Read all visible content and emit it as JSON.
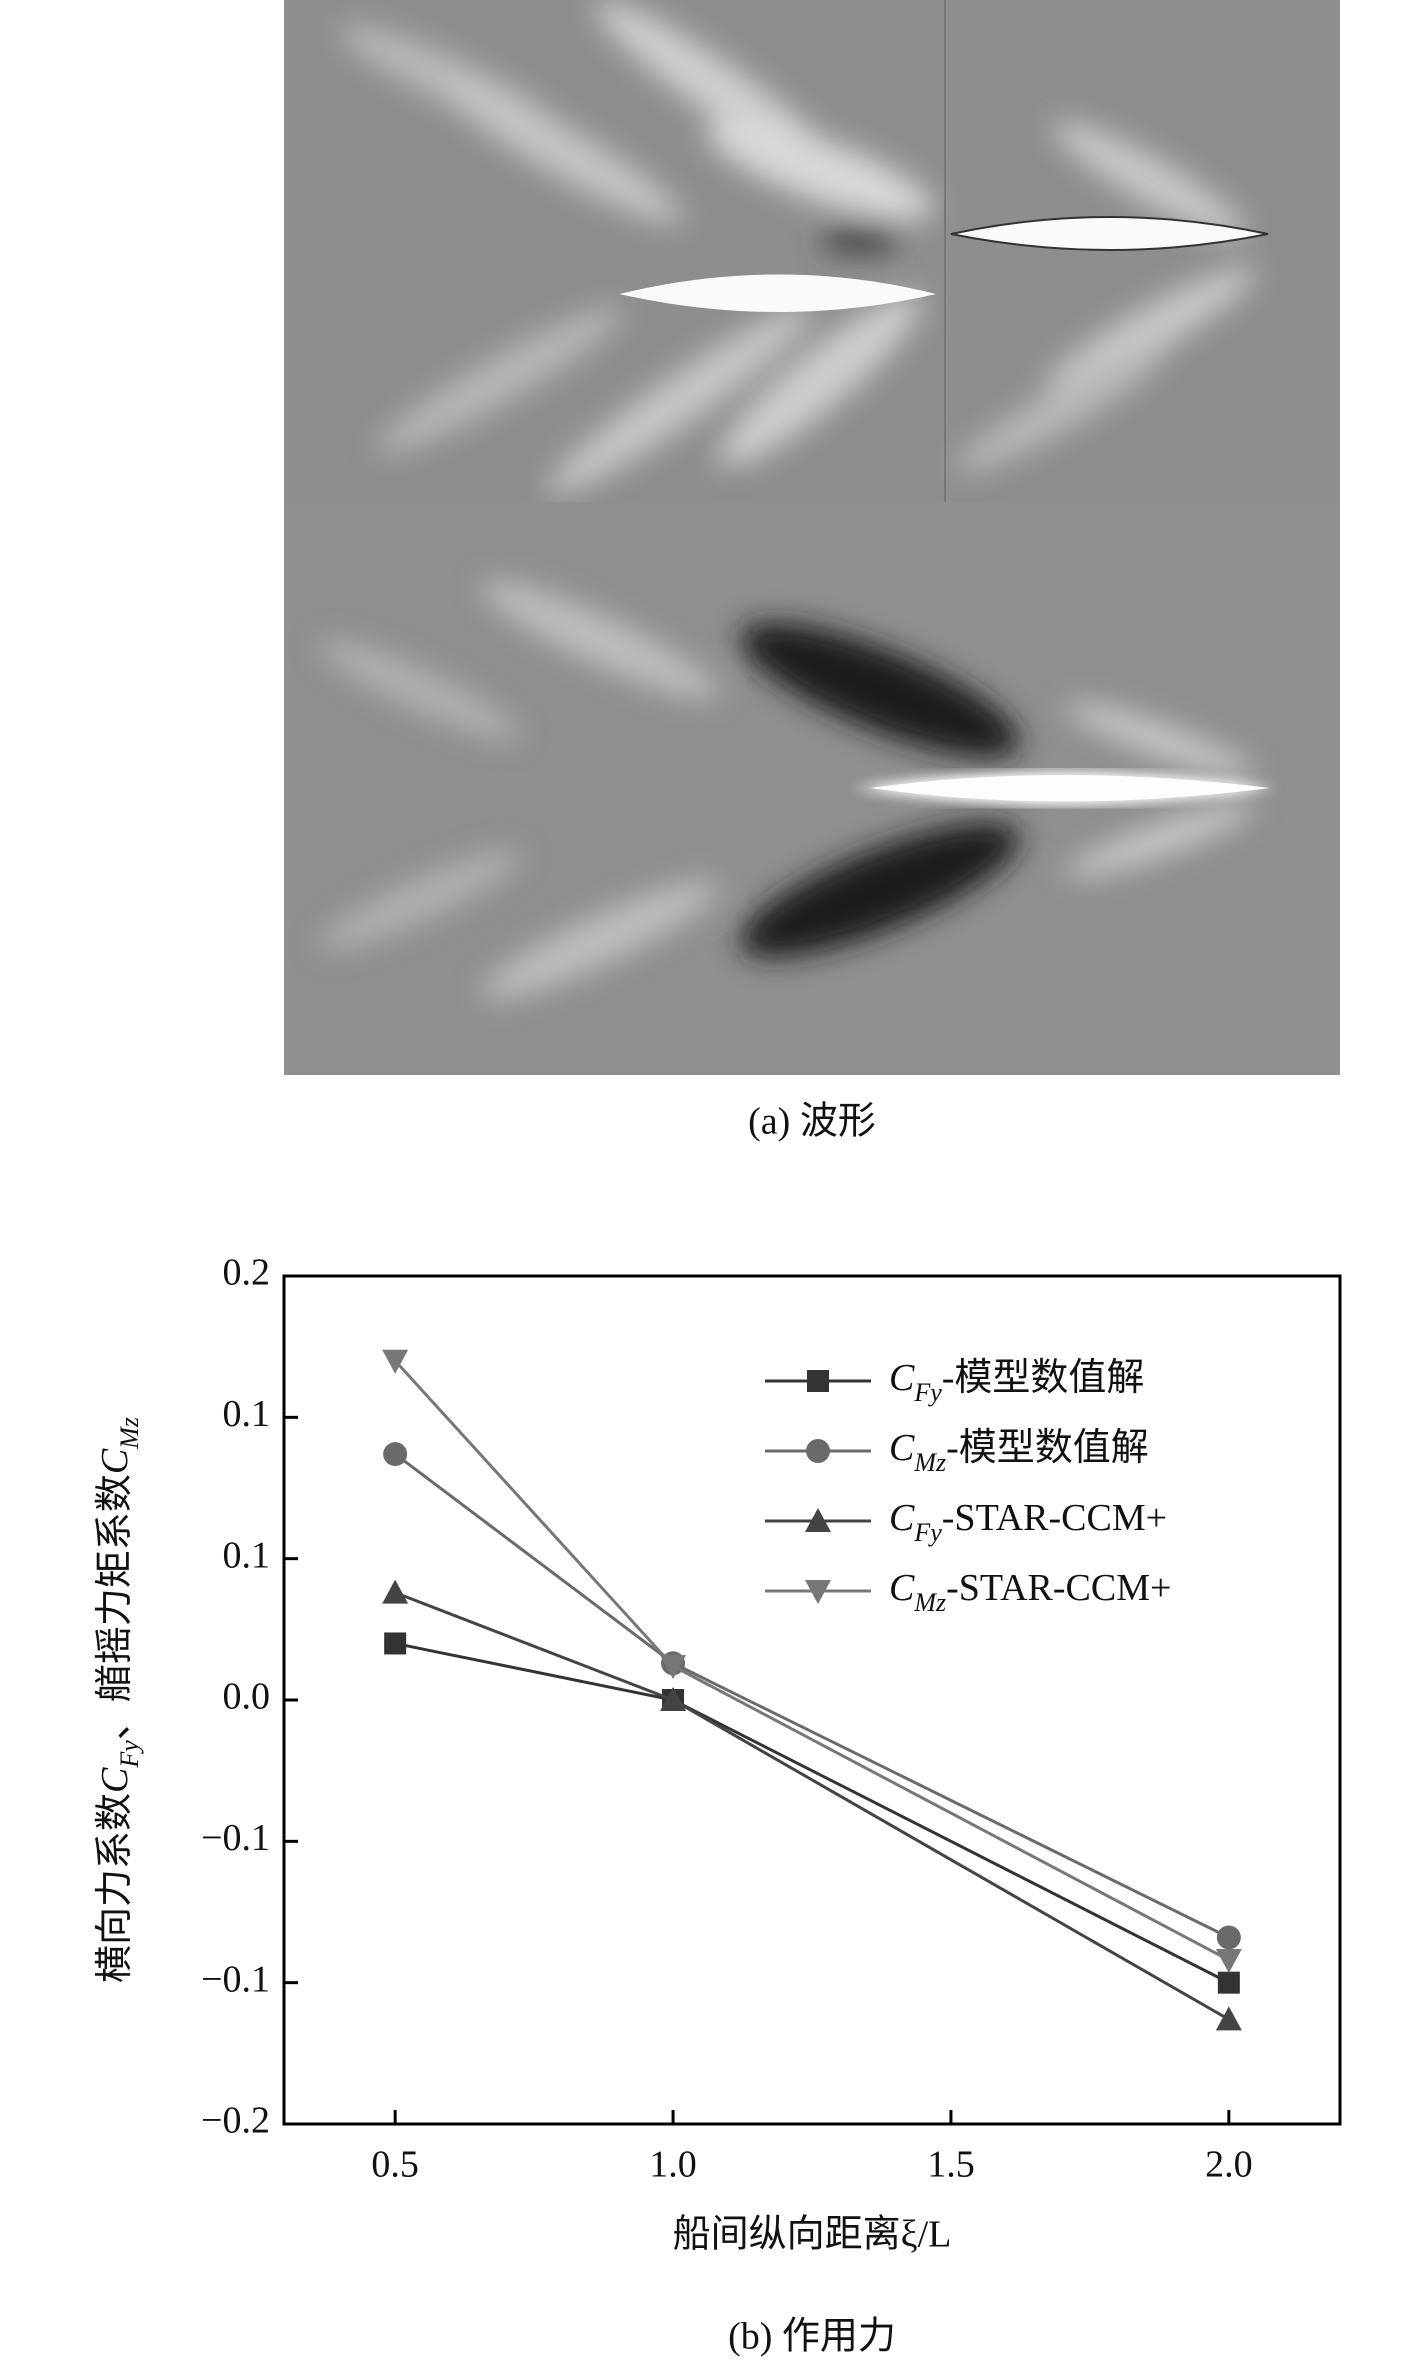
{
  "figure_a": {
    "caption": "(a) 波形"
  },
  "chart_data": {
    "type": "line",
    "caption": "(b) 作用力",
    "x_label": "船间纵向距离ξ/L",
    "y_label": "横向力系数CFy、艏摇力矩系数CMz",
    "x": [
      0.5,
      1.0,
      2.0
    ],
    "xlim": [
      0.3,
      2.2
    ],
    "xticks": [
      0.5,
      {
        "value": 1,
        "label": "1.0"
      },
      1.5,
      {
        "value": 2,
        "label": "2.0"
      }
    ],
    "ylim": [
      -0.15,
      0.15
    ],
    "yticks": [
      {
        "value": 0.15,
        "label": "0.2"
      },
      0.1,
      {
        "value": 0.05,
        "label": "0.1"
      },
      {
        "value": 0,
        "label": "0.0"
      },
      {
        "value": -0.05,
        "label": "−0.1"
      },
      {
        "value": -0.1,
        "label": "−0.1"
      },
      {
        "value": -0.15,
        "label": "−0.2"
      }
    ],
    "legend": "upper right",
    "series": [
      {
        "name": "CFy-模型数值解",
        "color": "#333333",
        "marker": "square",
        "values": [
          0.02,
          0,
          -0.1
        ]
      },
      {
        "name": "CMz-模型数值解",
        "color": "#6a6a6a",
        "marker": "circle",
        "values": [
          0.087,
          0.013,
          -0.084
        ]
      },
      {
        "name": "CFy-STAR-CCM+",
        "color": "#444444",
        "marker": "triangle-up",
        "values": [
          0.038,
          0,
          -0.113
        ]
      },
      {
        "name": "CMz-STAR-CCM+",
        "color": "#777777",
        "marker": "triangle-down",
        "values": [
          0.12,
          0.012,
          -0.092
        ]
      }
    ]
  }
}
